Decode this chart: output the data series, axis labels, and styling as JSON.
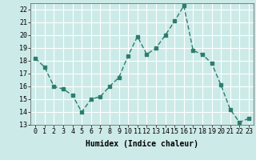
{
  "x": [
    0,
    1,
    2,
    3,
    4,
    5,
    6,
    7,
    8,
    9,
    10,
    11,
    12,
    13,
    14,
    15,
    16,
    17,
    18,
    19,
    20,
    21,
    22,
    23
  ],
  "y": [
    18.2,
    17.5,
    16.0,
    15.8,
    15.3,
    14.0,
    15.0,
    15.2,
    16.0,
    16.7,
    18.4,
    19.9,
    18.5,
    19.0,
    20.0,
    21.1,
    22.3,
    18.8,
    18.5,
    17.8,
    16.1,
    14.2,
    13.2,
    13.5
  ],
  "line_color": "#2e7d6e",
  "marker": "s",
  "marker_size": 2.5,
  "bg_color": "#cceae8",
  "grid_color": "#ffffff",
  "xlabel": "Humidex (Indice chaleur)",
  "ylim": [
    13,
    22.5
  ],
  "xlim": [
    -0.5,
    23.5
  ],
  "yticks": [
    13,
    14,
    15,
    16,
    17,
    18,
    19,
    20,
    21,
    22
  ],
  "xticks": [
    0,
    1,
    2,
    3,
    4,
    5,
    6,
    7,
    8,
    9,
    10,
    11,
    12,
    13,
    14,
    15,
    16,
    17,
    18,
    19,
    20,
    21,
    22,
    23
  ],
  "label_fontsize": 7,
  "tick_fontsize": 6
}
